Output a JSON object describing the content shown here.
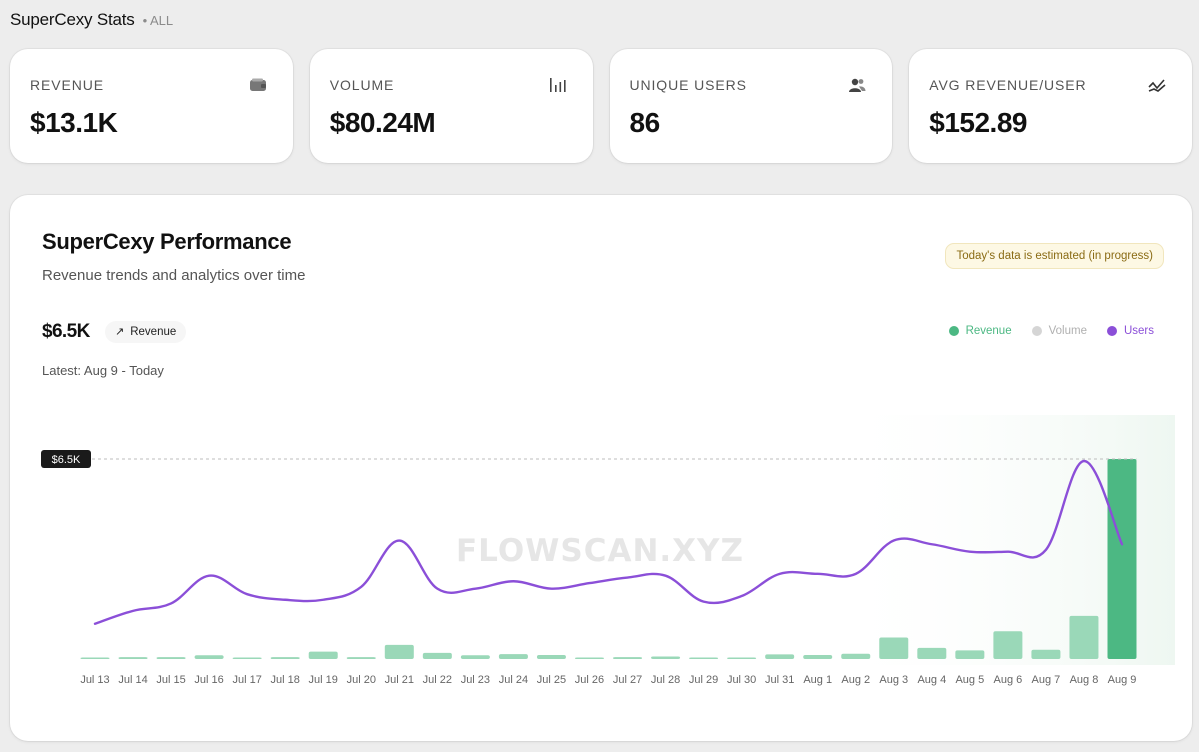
{
  "header": {
    "title": "SuperCexy Stats",
    "scope": "• ALL"
  },
  "cards": [
    {
      "label": "REVENUE",
      "value": "$13.1K",
      "icon": "wallet-icon"
    },
    {
      "label": "VOLUME",
      "value": "$80.24M",
      "icon": "bar-chart-icon"
    },
    {
      "label": "UNIQUE USERS",
      "value": "86",
      "icon": "users-icon"
    },
    {
      "label": "AVG REVENUE/USER",
      "value": "$152.89",
      "icon": "trend-icon"
    }
  ],
  "panel": {
    "title": "SuperCexy Performance",
    "subtitle": "Revenue trends and analytics over time",
    "notice": "Today's data is estimated (in progress)",
    "current_value": "$6.5K",
    "metric_pill": "Revenue",
    "latest": "Latest: Aug 9 - Today",
    "watermark": "FLOWSCAN.XYZ",
    "legend": [
      {
        "label": "Revenue",
        "color": "#4cb883"
      },
      {
        "label": "Volume",
        "color": "#d5d5d5"
      },
      {
        "label": "Users",
        "color": "#8b4fd8"
      }
    ]
  },
  "chart_data": {
    "type": "bar",
    "categories": [
      "Jul 13",
      "Jul 14",
      "Jul 15",
      "Jul 16",
      "Jul 17",
      "Jul 18",
      "Jul 19",
      "Jul 20",
      "Jul 21",
      "Jul 22",
      "Jul 23",
      "Jul 24",
      "Jul 25",
      "Jul 26",
      "Jul 27",
      "Jul 28",
      "Jul 29",
      "Jul 30",
      "Jul 31",
      "Aug 1",
      "Aug 2",
      "Aug 3",
      "Aug 4",
      "Aug 5",
      "Aug 6",
      "Aug 7",
      "Aug 8",
      "Aug 9"
    ],
    "series": [
      {
        "name": "Revenue",
        "type": "bar",
        "color": "#4cb883",
        "values": [
          10,
          60,
          60,
          120,
          20,
          60,
          240,
          60,
          460,
          200,
          120,
          160,
          130,
          30,
          60,
          80,
          50,
          40,
          150,
          130,
          170,
          700,
          360,
          280,
          900,
          300,
          1400,
          6500
        ]
      },
      {
        "name": "Users",
        "type": "line",
        "color": "#8b4fd8",
        "values": [
          0.12,
          0.19,
          0.23,
          0.38,
          0.28,
          0.25,
          0.25,
          0.32,
          0.57,
          0.31,
          0.31,
          0.35,
          0.31,
          0.34,
          0.37,
          0.38,
          0.24,
          0.27,
          0.39,
          0.39,
          0.39,
          0.57,
          0.55,
          0.51,
          0.51,
          0.52,
          1.0,
          0.55
        ]
      }
    ],
    "ymax": 6500,
    "reference_line": "$6.5K"
  }
}
